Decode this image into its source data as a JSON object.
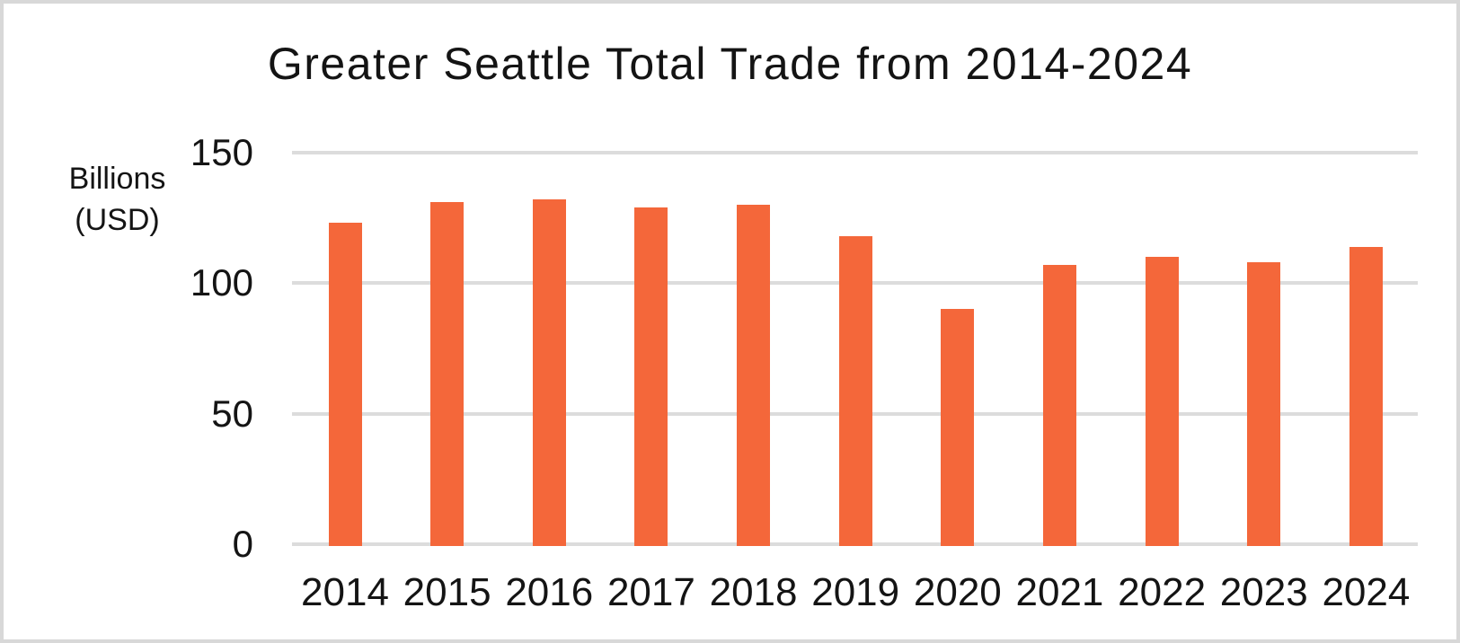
{
  "chart": {
    "title": "Greater Seattle Total Trade from 2014-2024",
    "ylabel_line1": "Billions",
    "ylabel_line2": "(USD)"
  },
  "chart_data": {
    "type": "bar",
    "title": "Greater Seattle Total Trade from 2014-2024",
    "categories": [
      "2014",
      "2015",
      "2016",
      "2017",
      "2018",
      "2019",
      "2020",
      "2021",
      "2022",
      "2023",
      "2024"
    ],
    "values": [
      123,
      131,
      132,
      129,
      130,
      118,
      90,
      107,
      110,
      108,
      114
    ],
    "xlabel": "",
    "ylabel": "Billions (USD)",
    "ylim": [
      0,
      150
    ],
    "yticks": [
      0,
      50,
      100,
      150
    ],
    "grid": true,
    "legend_position": "none",
    "bar_color": "#F4673A",
    "gridline_color": "#DCDCDC",
    "text_color": "#141414",
    "background_color": "#FFFFFF",
    "border_color": "#D8D8D8"
  }
}
